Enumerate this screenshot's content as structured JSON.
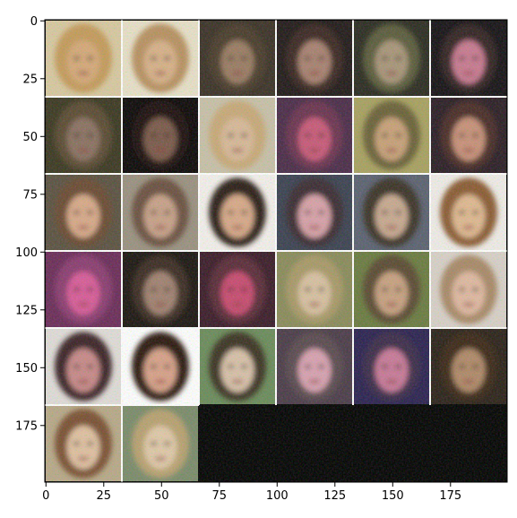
{
  "image": {
    "description": "6x6 grid of blurry generated face samples; 32 cells filled, last 4 cells black",
    "grid": {
      "rows": 6,
      "cols": 6,
      "filled": 32
    },
    "x_ticks": [
      "0",
      "25",
      "50",
      "75",
      "100",
      "125",
      "150",
      "175"
    ],
    "y_ticks": [
      "0",
      "25",
      "50",
      "75",
      "100",
      "125",
      "150",
      "175"
    ],
    "x_range": [
      0,
      199
    ],
    "y_range": [
      0,
      199
    ],
    "colors": {
      "separator": "#ffffff",
      "background": "#000000"
    },
    "cells": [
      {
        "bg": "#d8c8a0",
        "face": "#d6a878",
        "hair": "#c49a5a"
      },
      {
        "bg": "#e8e0c8",
        "face": "#d8b088",
        "hair": "#b89060"
      },
      {
        "bg": "#3a3026",
        "face": "#9a7a62",
        "hair": "#4a3a2c"
      },
      {
        "bg": "#201818",
        "face": "#a88070",
        "hair": "#3a2820"
      },
      {
        "bg": "#2a2a20",
        "face": "#a89478",
        "hair": "#5a5a3a"
      },
      {
        "bg": "#141014",
        "face": "#c87890",
        "hair": "#302024"
      },
      {
        "bg": "#3a3620",
        "face": "#8a7060",
        "hair": "#5a4a30"
      },
      {
        "bg": "#0a0606",
        "face": "#7a5848",
        "hair": "#1a1010"
      },
      {
        "bg": "#c8c0a8",
        "face": "#d8b898",
        "hair": "#c8a878"
      },
      {
        "bg": "#4a2a48",
        "face": "#c85878",
        "hair": "#6a3050"
      },
      {
        "bg": "#a8a060",
        "face": "#c8a078",
        "hair": "#6a6038"
      },
      {
        "bg": "#2a1c24",
        "face": "#c89078",
        "hair": "#4a2a28"
      },
      {
        "bg": "#5a5040",
        "face": "#d8a888",
        "hair": "#6a4a30"
      },
      {
        "bg": "#9a9080",
        "face": "#c8a088",
        "hair": "#6a5040"
      },
      {
        "bg": "#f4f0ec",
        "face": "#d8a888",
        "hair": "#2a1a12"
      },
      {
        "bg": "#3a4050",
        "face": "#d8a0a8",
        "hair": "#3a2a30"
      },
      {
        "bg": "#5a6070",
        "face": "#c8a890",
        "hair": "#3a3028"
      },
      {
        "bg": "#f0ece8",
        "face": "#e0b890",
        "hair": "#8a5a30"
      },
      {
        "bg": "#6a2a58",
        "face": "#d85a98",
        "hair": "#8a3a70"
      },
      {
        "bg": "#1a1410",
        "face": "#a08070",
        "hair": "#3a2a20"
      },
      {
        "bg": "#3a1a28",
        "face": "#c84a70",
        "hair": "#5a2a38"
      },
      {
        "bg": "#8a8a5a",
        "face": "#d8c0a0",
        "hair": "#a89868"
      },
      {
        "bg": "#6a7a40",
        "face": "#c8a080",
        "hair": "#5a4a30"
      },
      {
        "bg": "#d8d0c8",
        "face": "#e0b8a0",
        "hair": "#a88868"
      },
      {
        "bg": "#e0dcd8",
        "face": "#c88888",
        "hair": "#3a2028"
      },
      {
        "bg": "#ffffff",
        "face": "#d8a088",
        "hair": "#2a1810"
      },
      {
        "bg": "#6a8a5a",
        "face": "#d8c0a8",
        "hair": "#3a3020"
      },
      {
        "bg": "#4a3a48",
        "face": "#d8a0b0",
        "hair": "#5a4a50"
      },
      {
        "bg": "#2a2050",
        "face": "#c87898",
        "hair": "#3a2a48"
      },
      {
        "bg": "#2a2018",
        "face": "#b08868",
        "hair": "#3a2818"
      },
      {
        "bg": "#b8a888",
        "face": "#e0c0a0",
        "hair": "#7a5030"
      },
      {
        "bg": "#7a8a6a",
        "face": "#e0c8a8",
        "hair": "#b8a070"
      }
    ]
  }
}
